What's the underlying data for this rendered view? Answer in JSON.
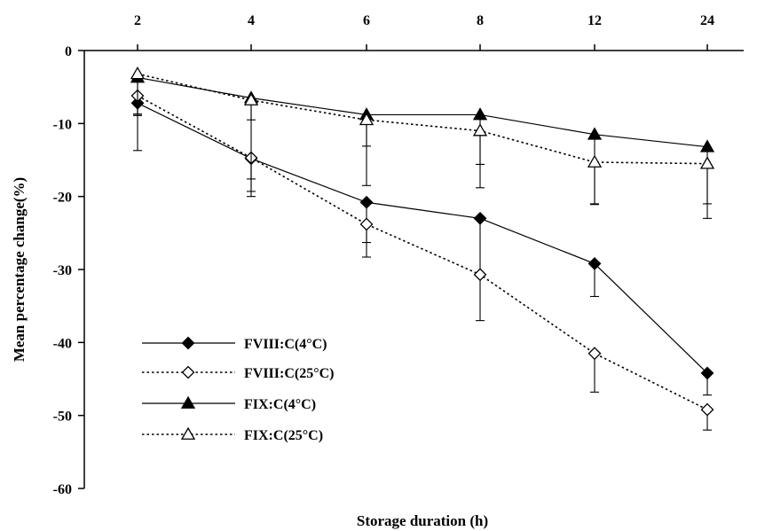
{
  "chart_data": {
    "type": "line",
    "title": "",
    "xlabel": "Storage duration (h)",
    "ylabel": "Mean percentage change(%)",
    "categories": [
      "2",
      "4",
      "6",
      "8",
      "12",
      "24"
    ],
    "ylim": [
      -60,
      0
    ],
    "yticks": [
      0,
      -10,
      -20,
      -30,
      -40,
      -50,
      -60
    ],
    "grid": false,
    "legend_position": "bottom-left",
    "series": [
      {
        "name": "FVIII:C(4°C)",
        "marker": "diamond-filled",
        "line": "solid",
        "values": [
          -7.2,
          -14.8,
          -20.8,
          -23,
          -29.2,
          -44.2
        ],
        "error": [
          6.5,
          4.5,
          5.5,
          7.5,
          4.5,
          3
        ]
      },
      {
        "name": "FVIII:C(25°C)",
        "marker": "diamond-open",
        "line": "dotted",
        "values": [
          -6.2,
          -14.7,
          -23.8,
          -30.7,
          -41.5,
          -49.2
        ],
        "error": [
          2.7,
          5.3,
          4.5,
          6.3,
          5.3,
          2.8
        ]
      },
      {
        "name": "FIX:C(4°C)",
        "marker": "triangle-filled",
        "line": "solid",
        "values": [
          -3.7,
          -6.5,
          -8.8,
          -8.8,
          -11.5,
          -13.2
        ],
        "error": [
          5,
          3,
          4.3,
          6.8,
          9.5,
          7.8
        ]
      },
      {
        "name": "FIX:C(25°C)",
        "marker": "triangle-open",
        "line": "dotted",
        "values": [
          -3.2,
          -6.8,
          -9.5,
          -11,
          -15.3,
          -15.5
        ],
        "error": [
          5.7,
          10.8,
          9,
          7.8,
          5.8,
          7.5
        ]
      }
    ]
  }
}
